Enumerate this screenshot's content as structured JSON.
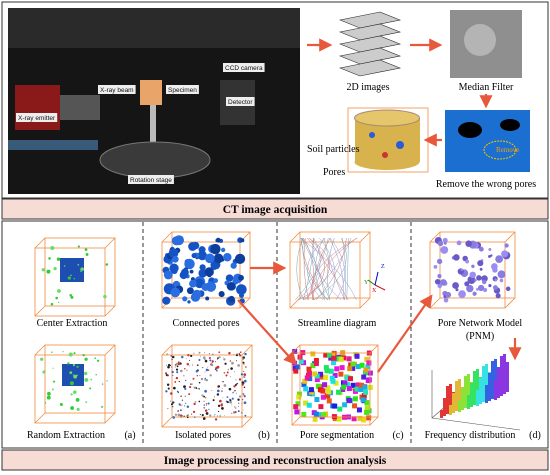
{
  "acquisition": {
    "photo_labels": [
      "X-ray beam",
      "Specimen",
      "CCD camera",
      "Detector",
      "X-ray emitter",
      "Rotation stage"
    ],
    "stack": "2D images",
    "filter": "Median Filter",
    "remove_tag": "Remove",
    "remove": "Remove the wrong pores",
    "soil": "Soil particles",
    "pores": "Pores",
    "banner": "CT image acquisition"
  },
  "analysis": {
    "center": "Center Extraction",
    "random": "Random Extraction",
    "tag_a": "(a)",
    "connected": "Connected pores",
    "isolated": "Isolated pores",
    "tag_b": "(b)",
    "streamline": "Streamline diagram",
    "axes": [
      "X",
      "Y",
      "Z"
    ],
    "segmentation": "Pore segmentation",
    "tag_c": "(c)",
    "pnm": "Pore Network Model",
    "pnm_abbr": "(PNM)",
    "frequency": "Frequency distribution",
    "tag_d": "(d)",
    "banner": "Image processing and reconstruction analysis"
  }
}
